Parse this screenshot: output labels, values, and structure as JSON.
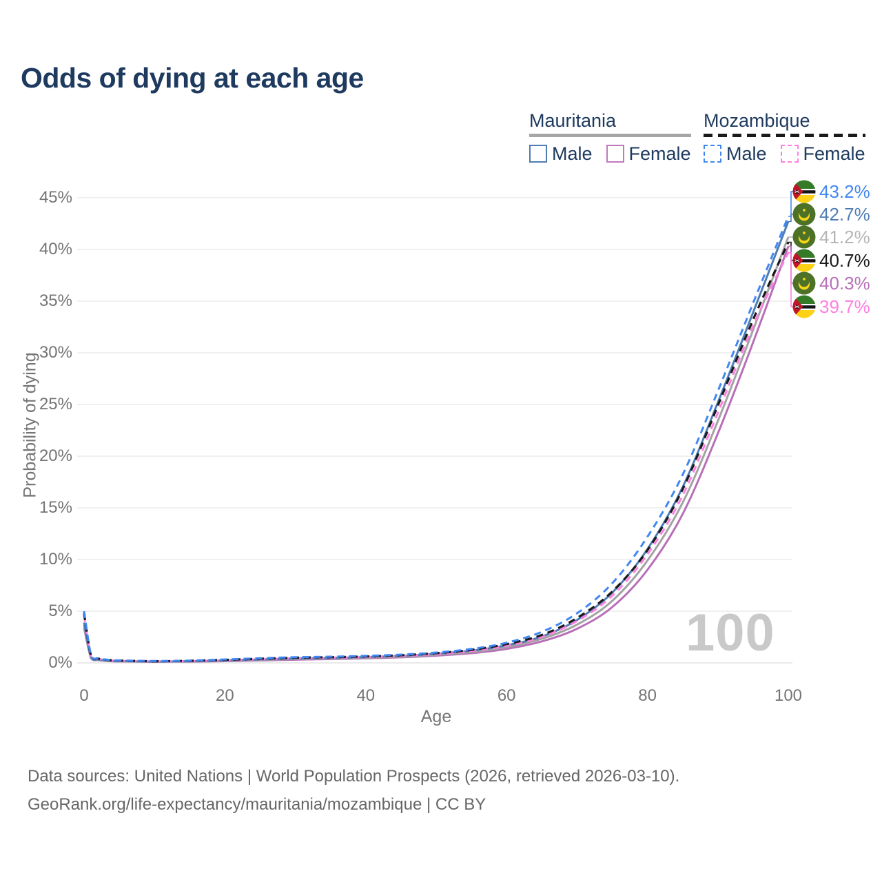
{
  "header": {
    "title": "Odds of dying at each age"
  },
  "legend": {
    "groups": [
      {
        "name": "Mauritania",
        "line_style": "solid",
        "underline_color": "#a6a6a6",
        "items": [
          {
            "label": "Male",
            "color": "#4e7cb2"
          },
          {
            "label": "Female",
            "color": "#c07abc"
          }
        ]
      },
      {
        "name": "Mozambique",
        "line_style": "dashed",
        "underline_color": "#1a1a1a",
        "items": [
          {
            "label": "Male",
            "color": "#4187f0"
          },
          {
            "label": "Female",
            "color": "#ff7fe1"
          }
        ]
      }
    ]
  },
  "chart_data": {
    "type": "line",
    "title": "Odds of dying at each age",
    "xlabel": "Age",
    "ylabel": "Probability of dying",
    "xlim": [
      0,
      100
    ],
    "ylim": [
      0,
      45
    ],
    "x_tick_labels": [
      "0",
      "20",
      "40",
      "60",
      "80",
      "100"
    ],
    "y_tick_labels": [
      "0%",
      "5%",
      "10%",
      "15%",
      "20%",
      "25%",
      "30%",
      "35%",
      "40%",
      "45%"
    ],
    "grid": "horizontal",
    "legend_position": "top-right",
    "watermark": "100",
    "x": [
      0,
      1,
      2,
      3,
      4,
      5,
      10,
      15,
      20,
      25,
      30,
      35,
      40,
      45,
      50,
      55,
      60,
      65,
      70,
      75,
      80,
      85,
      90,
      95,
      100
    ],
    "series": [
      {
        "name": "Mauritania Female",
        "country": "mauritania",
        "sex": "female",
        "color": "#b86fb8",
        "dash": false,
        "width": 3,
        "values": [
          3.4,
          0.46,
          0.27,
          0.2,
          0.16,
          0.14,
          0.1,
          0.12,
          0.17,
          0.24,
          0.31,
          0.37,
          0.44,
          0.54,
          0.7,
          0.94,
          1.36,
          2.08,
          3.3,
          5.4,
          9.0,
          14.4,
          22.2,
          31.0,
          40.3
        ]
      },
      {
        "name": "Mauritania Both sexes",
        "country": "mauritania",
        "sex": "all",
        "color": "#a3a3a3",
        "dash": false,
        "width": 3,
        "values": [
          3.65,
          0.5,
          0.3,
          0.22,
          0.18,
          0.16,
          0.12,
          0.14,
          0.21,
          0.29,
          0.37,
          0.43,
          0.5,
          0.61,
          0.79,
          1.06,
          1.53,
          2.33,
          3.7,
          6.0,
          9.9,
          15.5,
          23.4,
          32.2,
          41.2
        ]
      },
      {
        "name": "Mauritania Male",
        "country": "mauritania",
        "sex": "male",
        "color": "#4e7cb2",
        "dash": false,
        "width": 3,
        "values": [
          3.9,
          0.55,
          0.33,
          0.25,
          0.2,
          0.18,
          0.13,
          0.16,
          0.24,
          0.33,
          0.42,
          0.48,
          0.56,
          0.68,
          0.88,
          1.18,
          1.7,
          2.55,
          4.15,
          6.8,
          11.0,
          17.0,
          25.2,
          33.9,
          42.7
        ]
      },
      {
        "name": "Mozambique Female",
        "country": "mozambique",
        "sex": "female",
        "color": "#ff7fe1",
        "dash": true,
        "width": 3,
        "values": [
          4.6,
          0.65,
          0.4,
          0.29,
          0.24,
          0.21,
          0.15,
          0.18,
          0.26,
          0.36,
          0.46,
          0.51,
          0.57,
          0.68,
          0.86,
          1.15,
          1.66,
          2.52,
          4.05,
          6.5,
          10.5,
          16.2,
          24.2,
          32.6,
          39.7
        ]
      },
      {
        "name": "Mozambique Both sexes",
        "country": "mozambique",
        "sex": "all",
        "color": "#1a1a1a",
        "dash": true,
        "width": 3.2,
        "values": [
          4.8,
          0.7,
          0.42,
          0.31,
          0.25,
          0.22,
          0.16,
          0.2,
          0.29,
          0.4,
          0.5,
          0.55,
          0.62,
          0.74,
          0.94,
          1.26,
          1.82,
          2.7,
          4.35,
          6.9,
          10.9,
          16.8,
          24.9,
          33.2,
          40.7
        ]
      },
      {
        "name": "Mozambique Male",
        "country": "mozambique",
        "sex": "male",
        "color": "#4187f0",
        "dash": true,
        "width": 3,
        "values": [
          5.0,
          0.75,
          0.45,
          0.33,
          0.27,
          0.24,
          0.18,
          0.22,
          0.33,
          0.45,
          0.55,
          0.6,
          0.68,
          0.8,
          1.0,
          1.35,
          1.95,
          3.0,
          4.8,
          7.7,
          12.2,
          18.2,
          26.3,
          34.8,
          43.2
        ]
      }
    ]
  },
  "end_labels": [
    {
      "flag": "mozambique",
      "text": "43.2%",
      "value": 43.2,
      "color": "#4187f0"
    },
    {
      "flag": "mauritania",
      "text": "42.7%",
      "value": 42.7,
      "color": "#4e7cb2"
    },
    {
      "flag": "mauritania",
      "text": "41.2%",
      "value": 41.2,
      "color": "#b5b5b5"
    },
    {
      "flag": "mozambique",
      "text": "40.7%",
      "value": 40.7,
      "color": "#1a1a1a"
    },
    {
      "flag": "mauritania",
      "text": "40.3%",
      "value": 40.3,
      "color": "#b86fb8"
    },
    {
      "flag": "mozambique",
      "text": "39.7%",
      "value": 39.7,
      "color": "#ff7fe1"
    }
  ],
  "footer": {
    "line1": "Data sources: United Nations | World Population Prospects (2026, retrieved 2026-03-10).",
    "line2": "GeoRank.org/life-expectancy/mauritania/mozambique | CC BY"
  }
}
